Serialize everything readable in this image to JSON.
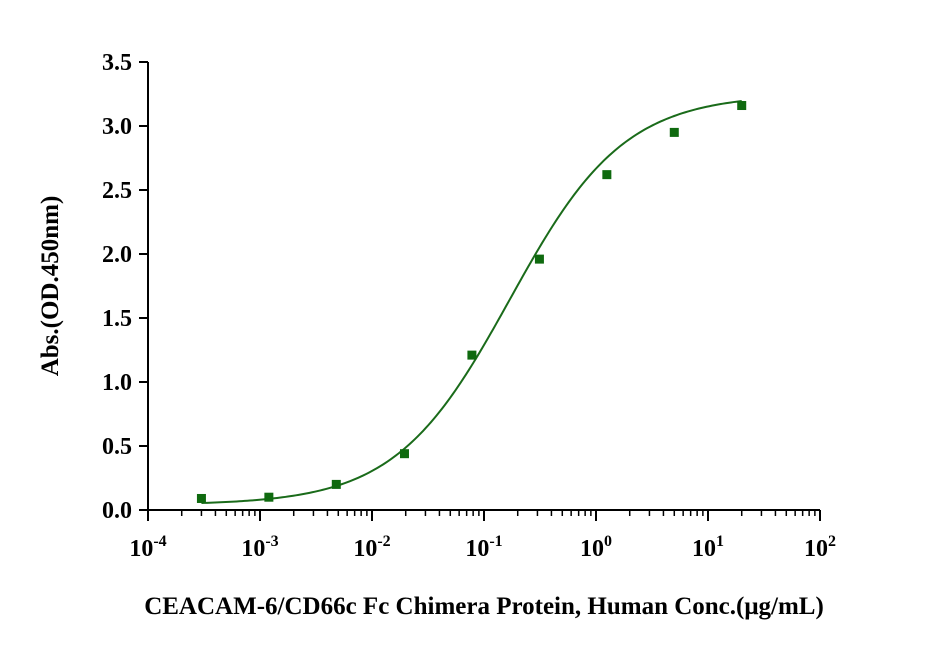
{
  "chart_data": {
    "type": "scatter",
    "xscale": "log",
    "xlim": [
      0.0001,
      100
    ],
    "ylim": [
      0,
      3.5
    ],
    "xticks": [
      {
        "base": "10",
        "exp": "-4"
      },
      {
        "base": "10",
        "exp": "-3"
      },
      {
        "base": "10",
        "exp": "-2"
      },
      {
        "base": "10",
        "exp": "-1"
      },
      {
        "base": "10",
        "exp": "0"
      },
      {
        "base": "10",
        "exp": "1"
      },
      {
        "base": "10",
        "exp": "2"
      }
    ],
    "yticks": [
      "0.0",
      "0.5",
      "1.0",
      "1.5",
      "2.0",
      "2.5",
      "3.0",
      "3.5"
    ],
    "xlabel": "CEACAM-6/CD66c Fc Chimera Protein, Human  Conc.(μg/mL)",
    "ylabel": "Abs.(OD.450nm)",
    "grid": false,
    "color": "#1a6b1a",
    "marker_color": "#0f6a0f",
    "x": [
      0.0003,
      0.0012,
      0.0048,
      0.0195,
      0.078,
      0.3125,
      1.25,
      5,
      20
    ],
    "y": [
      0.09,
      0.1,
      0.2,
      0.44,
      1.21,
      1.96,
      2.62,
      2.95,
      3.16
    ],
    "fit": {
      "model": "4PL",
      "bottom": 0.04,
      "top": 3.25,
      "ec50": 0.17,
      "hill": 0.85
    }
  }
}
